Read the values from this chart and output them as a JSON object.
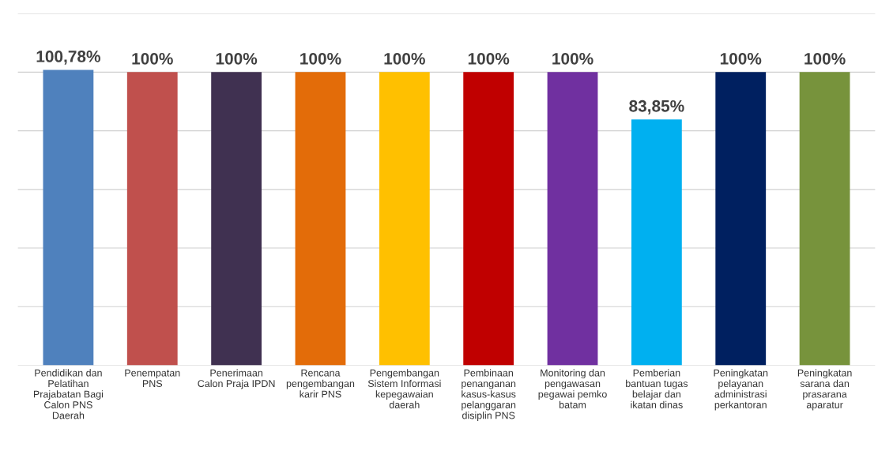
{
  "chart_data": {
    "type": "bar",
    "categories": [
      "Pendidikan dan\nPelatihan\nPrajabatan Bagi\nCalon PNS\nDaerah",
      "Penempatan\nPNS",
      "Penerimaan\nCalon Praja IPDN",
      "Rencana\npengembangan\nkarir PNS",
      "Pengembangan\nSistem Informasi\nkepegawaian\ndaerah",
      "Pembinaan\npenanganan\nkasus-kasus\npelanggaran\ndisiplin PNS",
      "Monitoring dan\npengawasan\npegawai pemko\nbatam",
      "Pemberian\nbantuan tugas\nbelajar dan\nikatan dinas",
      "Peningkatan\npelayanan\nadministrasi\nperkantoran",
      "Peningkatan\nsarana dan\nprasarana\naparatur"
    ],
    "values": [
      100.78,
      100,
      100,
      100,
      100,
      100,
      100,
      83.85,
      100,
      100
    ],
    "value_labels": [
      "100,78%",
      "100%",
      "100%",
      "100%",
      "100%",
      "100%",
      "100%",
      "83,85%",
      "100%",
      "100%"
    ],
    "colors": [
      "#4f81bd",
      "#c0504d",
      "#403151",
      "#e36c09",
      "#ffc000",
      "#c00000",
      "#7030a0",
      "#00b0f0",
      "#002060",
      "#77933c"
    ],
    "ylim": [
      0,
      120
    ],
    "yticks": [
      {
        "value": 0,
        "label": null
      },
      {
        "value": 20,
        "label": null
      },
      {
        "value": 40,
        "label": null
      },
      {
        "value": 60,
        "label": null
      },
      {
        "value": 80,
        "label": null
      },
      {
        "value": 100,
        "label": null
      },
      {
        "value": 120,
        "label": null
      }
    ],
    "grid": "y",
    "tick_labels": "x"
  }
}
